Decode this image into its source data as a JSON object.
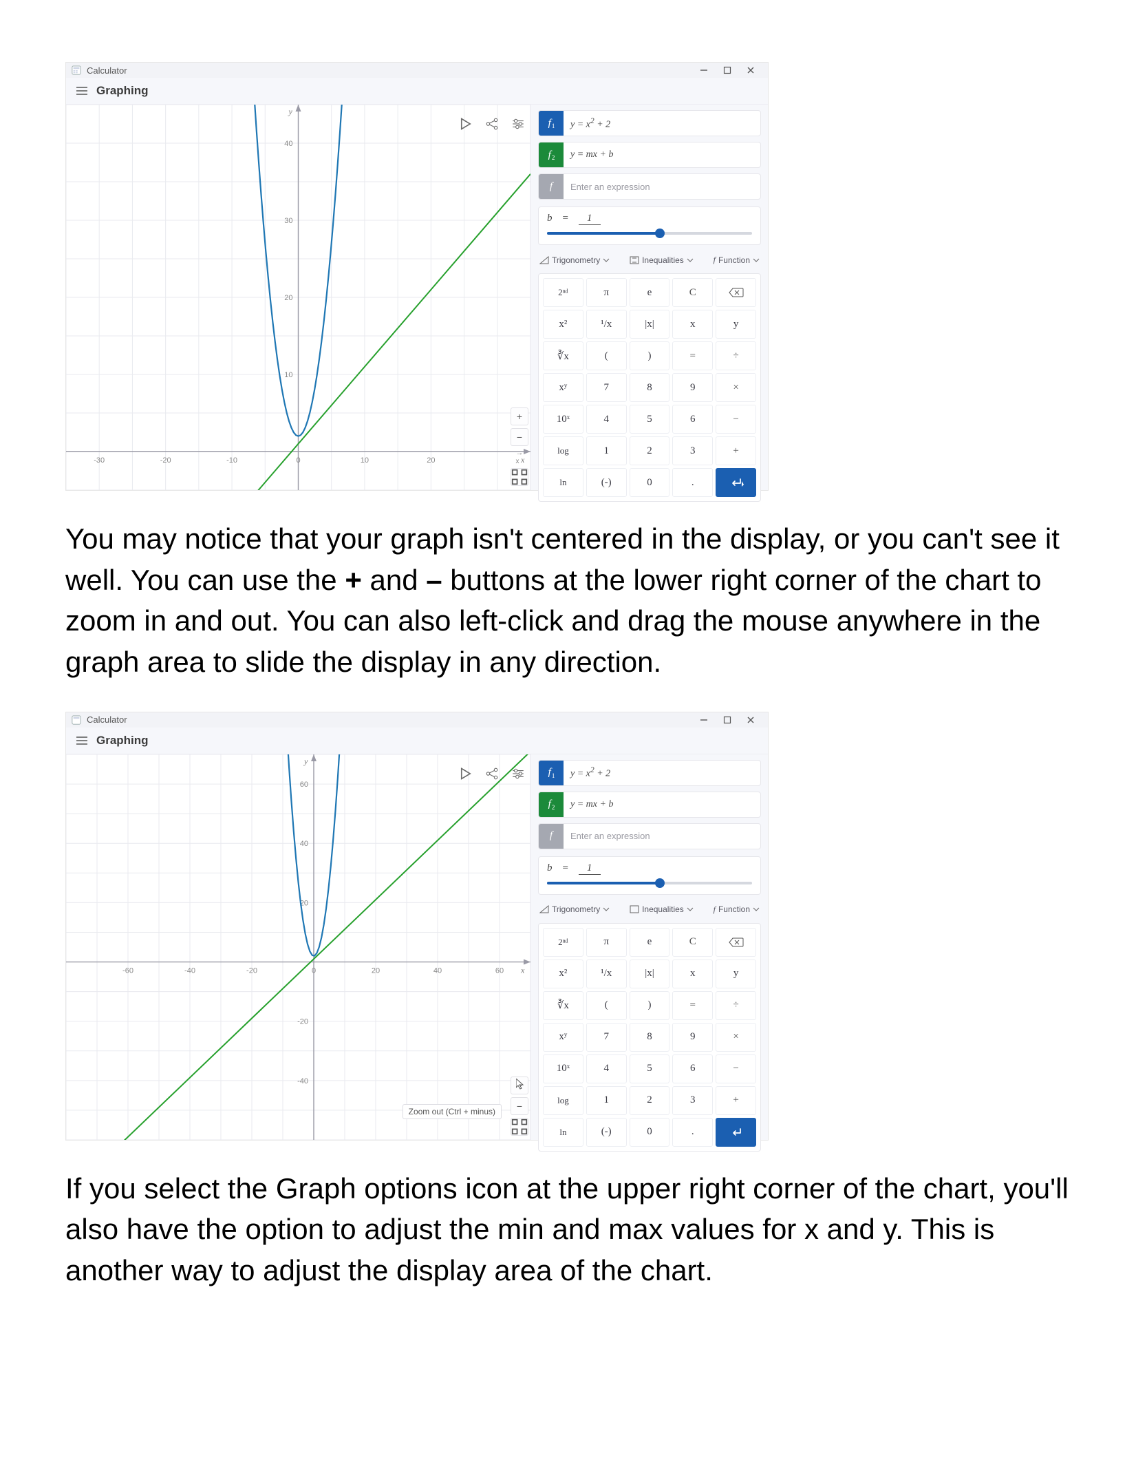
{
  "window": {
    "title": "Calculator",
    "mode": "Graphing"
  },
  "screenshot1": {
    "equations": {
      "f1": {
        "color": "#1b5fb1",
        "label_html": "y = x² + 2"
      },
      "f2": {
        "color": "#1b8a3a",
        "label_html": "y = mx + b"
      },
      "empty_placeholder": "Enter an expression",
      "empty_chip_color": "#a5a8b1"
    },
    "variable": {
      "name": "b",
      "value": "1",
      "slider_pct": 55
    },
    "keypad_categories": {
      "trig": "Trigonometry",
      "ineq": "Inequalities",
      "func": "Function"
    },
    "keypad_rows": [
      [
        "2ⁿᵈ",
        "π",
        "e",
        "C",
        "⌫"
      ],
      [
        "x²",
        "¹/x",
        "|x|",
        "x",
        "y"
      ],
      [
        "∛x",
        "(",
        ")",
        "=",
        "÷"
      ],
      [
        "xʸ",
        "7",
        "8",
        "9",
        "×"
      ],
      [
        "10ˣ",
        "4",
        "5",
        "6",
        "−"
      ],
      [
        "log",
        "1",
        "2",
        "3",
        "+"
      ],
      [
        "ln",
        "(-)",
        "0",
        ".",
        "↵"
      ]
    ],
    "graph": {
      "xmin": -35,
      "xmax": 35,
      "ymin": -5,
      "ymax": 45,
      "xtick_step": 10,
      "ytick_step": 10,
      "xtick_labels": [
        -30,
        -20,
        -10,
        0,
        10,
        20
      ],
      "ytick_labels": [
        10,
        20,
        30,
        40
      ],
      "grid_color": "#e9eaef",
      "axis_color": "#9a9aa6",
      "parabola_color": "#1f77b4",
      "line_color": "#26a02c",
      "line_slope": 1,
      "line_intercept": 1
    }
  },
  "screenshot2": {
    "graph": {
      "xmin": -80,
      "xmax": 70,
      "ymin": -60,
      "ymax": 70,
      "xtick_step": 20,
      "ytick_step": 20,
      "xtick_labels": [
        -60,
        -40,
        -20,
        0,
        20,
        40,
        60
      ],
      "ytick_labels": [
        -40,
        -20,
        20,
        40,
        60
      ],
      "grid_color": "#e9eaef",
      "axis_color": "#9a9aa6",
      "parabola_color": "#1f77b4",
      "line_color": "#26a02c",
      "line_slope": 1,
      "line_intercept": 1
    },
    "tooltip": "Zoom out (Ctrl + minus)"
  },
  "paragraphs": {
    "p1_pre": "You may notice that your graph isn't centered in the display, or you can't see it well. You can use the ",
    "p1_plus": "+",
    "p1_mid": " and ",
    "p1_minus": "–",
    "p1_post": " buttons at the lower right corner of the chart to zoom in and out. You can also left-click and drag the mouse anywhere in the graph area to slide the display in any direction.",
    "p2": "If you select the Graph options icon at the upper right corner of the chart, you'll also have the option to adjust the min and max values for x and y. This is another way to adjust the display area of the chart."
  }
}
